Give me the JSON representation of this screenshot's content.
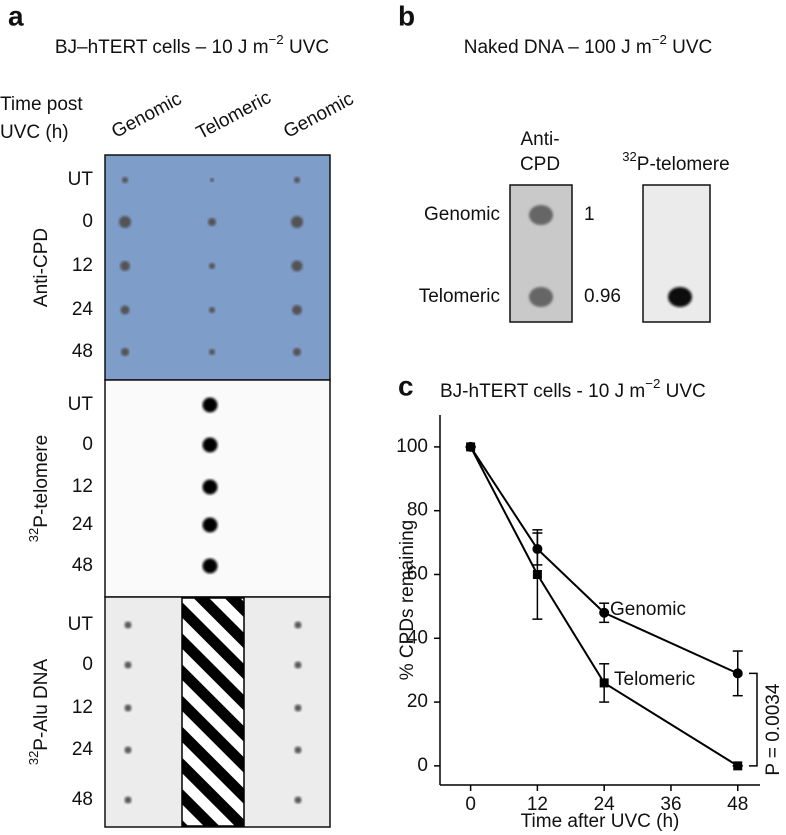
{
  "panel_a": {
    "label": "a",
    "title": "BJ–hTERT cells – 10 J m",
    "title_sup": "−2",
    "title_end": " UVC",
    "row_header": [
      "Time post",
      "UVC (h)"
    ],
    "columns": [
      "Genomic",
      "Telomeric",
      "Genomic"
    ],
    "blots": [
      {
        "name": "Anti-CPD",
        "rows": [
          "UT",
          "0",
          "12",
          "24",
          "48"
        ]
      },
      {
        "sup": "32",
        "name": "P-telomere",
        "rows": [
          "UT",
          "0",
          "12",
          "24",
          "48"
        ]
      },
      {
        "sup": "32",
        "name": "P-Alu DNA",
        "rows": [
          "UT",
          "0",
          "12",
          "24",
          "48"
        ]
      }
    ]
  },
  "panel_b": {
    "label": "b",
    "title": "Naked DNA – 100 J m",
    "title_sup": "−2",
    "title_end": " UVC",
    "probes": [
      {
        "name": [
          "Anti-",
          "CPD"
        ]
      },
      {
        "sup": "32",
        "name": [
          "P-telomere"
        ]
      }
    ],
    "rows": [
      "Genomic",
      "Telomeric"
    ],
    "ratios": [
      1,
      0.96
    ]
  },
  "chart_data": {
    "type": "line",
    "label": "c",
    "title": "BJ-hTERT cells - 10 J m",
    "title_sup": "−2",
    "title_end": " UVC",
    "x_label": "Time after UVC (h)",
    "y_label": "% CPDs remaining",
    "x": [
      0,
      12,
      24,
      48
    ],
    "xlim": [
      -5.5,
      52
    ],
    "xticks": [
      0,
      12,
      24,
      36,
      48
    ],
    "ylim": [
      -6,
      110
    ],
    "yticks": [
      0,
      20,
      40,
      60,
      80,
      100
    ],
    "series": [
      {
        "name": "Genomic",
        "color": "#000000",
        "marker": "circle",
        "values": [
          100,
          68,
          48,
          29
        ],
        "errors": [
          0,
          5,
          3,
          7
        ]
      },
      {
        "name": "Telomeric",
        "color": "#000000",
        "marker": "square",
        "values": [
          100,
          60,
          26,
          0
        ],
        "errors": [
          0,
          14,
          6,
          0
        ]
      }
    ],
    "annotation": "P = 0.0034"
  }
}
